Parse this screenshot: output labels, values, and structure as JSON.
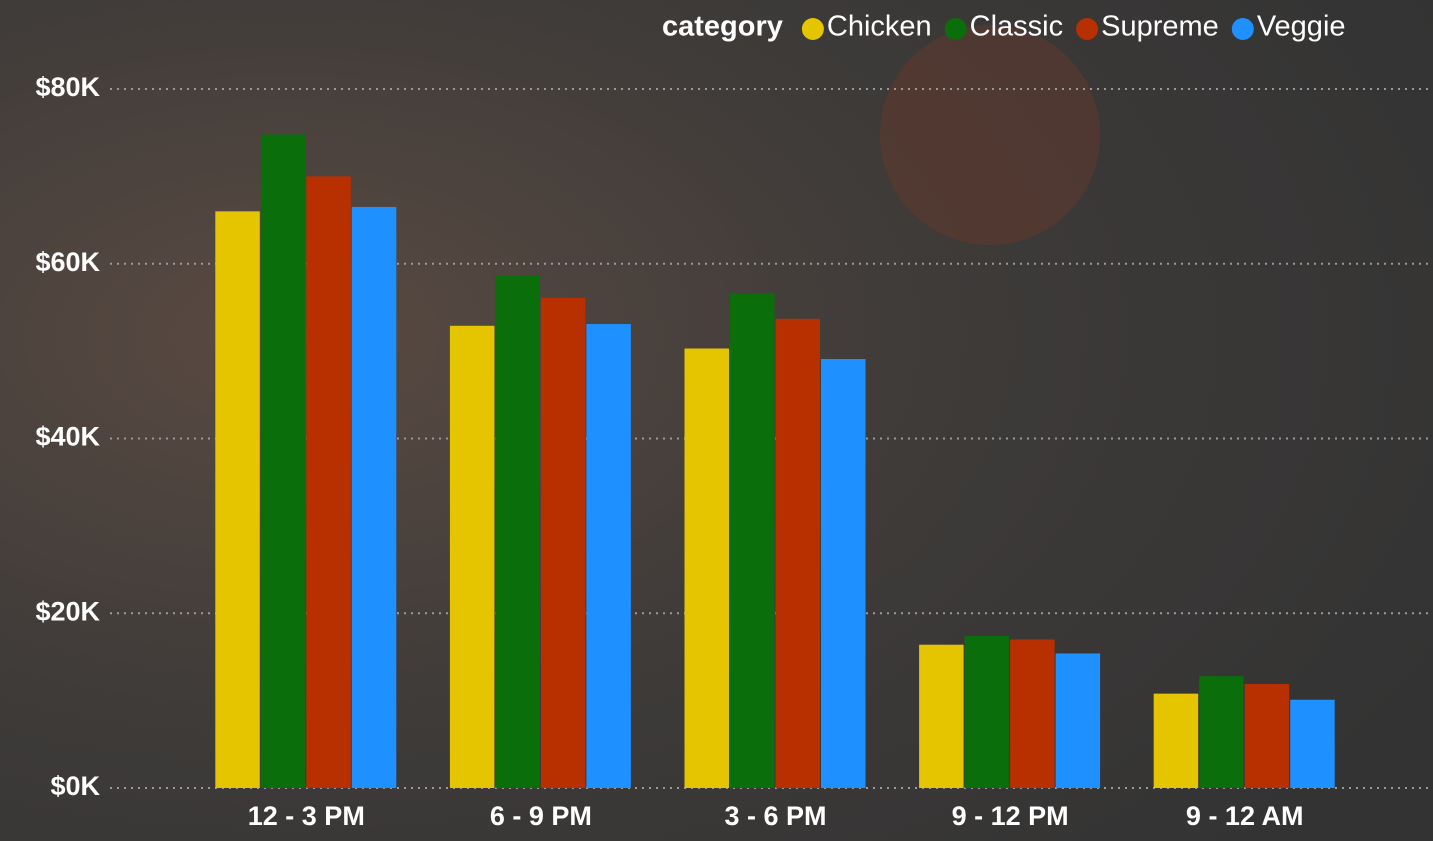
{
  "chart_data": {
    "type": "bar",
    "legend_title": "category",
    "categories": [
      "12 - 3 PM",
      "6 - 9 PM",
      "3 - 6 PM",
      "9 - 12 PM",
      "9 - 12 AM"
    ],
    "series": [
      {
        "name": "Chicken",
        "color": "#e5c400",
        "values": [
          66000,
          52900,
          50300,
          16400,
          10800
        ]
      },
      {
        "name": "Classic",
        "color": "#0a6e0a",
        "values": [
          74800,
          58600,
          56600,
          17400,
          12800
        ]
      },
      {
        "name": "Supreme",
        "color": "#b82f00",
        "values": [
          70000,
          56100,
          53700,
          17000,
          11900
        ]
      },
      {
        "name": "Veggie",
        "color": "#1e90ff",
        "values": [
          66500,
          53100,
          49100,
          15400,
          10100
        ]
      }
    ],
    "ylim": [
      0,
      80000
    ],
    "yticks": [
      {
        "value": 0,
        "label": "$0K"
      },
      {
        "value": 20000,
        "label": "$20K"
      },
      {
        "value": 40000,
        "label": "$40K"
      },
      {
        "value": 60000,
        "label": "$60K"
      },
      {
        "value": 80000,
        "label": "$80K"
      }
    ],
    "grid": true
  }
}
